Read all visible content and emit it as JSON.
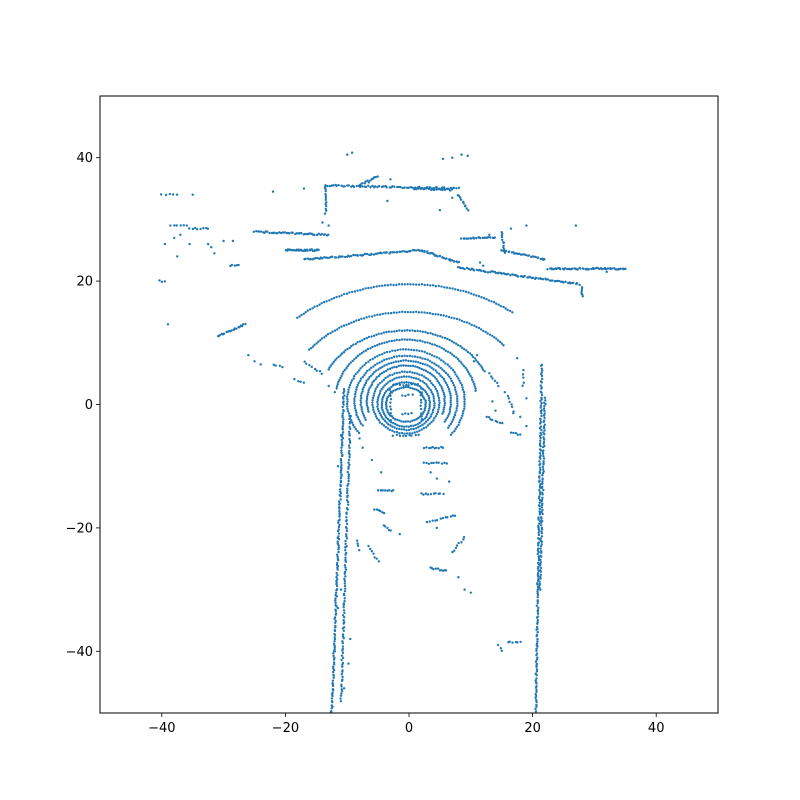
{
  "chart_data": {
    "type": "scatter",
    "title": "",
    "xlabel": "",
    "ylabel": "",
    "xlim": [
      -50,
      50
    ],
    "ylim": [
      -50,
      50
    ],
    "xticks": [
      -40,
      -20,
      0,
      20,
      40
    ],
    "yticks": [
      -40,
      -20,
      0,
      20,
      40
    ],
    "xtick_labels": [
      "−40",
      "−20",
      "0",
      "20",
      "40"
    ],
    "ytick_labels": [
      "−40",
      "−20",
      "0",
      "20",
      "40"
    ],
    "grid": false,
    "legend": "none",
    "marker_color": "#1f77b4",
    "point_groups": {
      "rings": [
        {
          "cx": -0.5,
          "cy": 0.0,
          "rx": 3.2,
          "ry": 2.8,
          "t0": 0,
          "t1": 360
        },
        {
          "cx": -0.5,
          "cy": 0.0,
          "rx": 3.9,
          "ry": 3.6,
          "t0": 0,
          "t1": 360
        },
        {
          "cx": -0.5,
          "cy": 0.2,
          "rx": 4.6,
          "ry": 4.3,
          "t0": 0,
          "t1": 360
        },
        {
          "cx": -0.5,
          "cy": 0.3,
          "rx": 5.4,
          "ry": 5.0,
          "t0": 0,
          "t1": 360
        },
        {
          "cx": -0.5,
          "cy": 0.5,
          "rx": 6.3,
          "ry": 5.8,
          "t0": -20,
          "t1": 200
        },
        {
          "cx": -0.5,
          "cy": 0.5,
          "rx": 7.3,
          "ry": 6.6,
          "t0": -30,
          "t1": 210
        },
        {
          "cx": -0.5,
          "cy": 0.5,
          "rx": 8.3,
          "ry": 7.4,
          "t0": -35,
          "t1": 215
        },
        {
          "cx": -0.5,
          "cy": 0.5,
          "rx": 9.5,
          "ry": 8.4,
          "t0": -40,
          "t1": 220
        },
        {
          "cx": -0.5,
          "cy": 0.5,
          "rx": 11.5,
          "ry": 10.0,
          "t0": 10,
          "t1": 170
        },
        {
          "cx": -0.5,
          "cy": 0.5,
          "rx": 14.0,
          "ry": 11.5,
          "t0": 25,
          "t1": 155
        },
        {
          "cx": 0.0,
          "cy": 0.0,
          "rx": 20.0,
          "ry": 15.0,
          "t0": 40,
          "t1": 145
        },
        {
          "cx": 0.0,
          "cy": 0.0,
          "rx": 26.0,
          "ry": 19.5,
          "t0": 50,
          "t1": 135
        }
      ],
      "segments": [
        {
          "x0": -10.5,
          "y0": 2.5,
          "x1": -12.5,
          "y1": -50.0,
          "n": 160
        },
        {
          "x0": -9.5,
          "y0": -2.0,
          "x1": -11.0,
          "y1": -48.0,
          "n": 120
        },
        {
          "x0": 21.5,
          "y0": 6.5,
          "x1": 20.5,
          "y1": -50.0,
          "n": 170
        },
        {
          "x0": 22.0,
          "y0": 1.0,
          "x1": 21.2,
          "y1": -30.0,
          "n": 90
        },
        {
          "x0": -20.0,
          "y0": 25.0,
          "x1": -14.5,
          "y1": 25.0,
          "n": 35
        },
        {
          "x0": -17.0,
          "y0": 23.5,
          "x1": 2.0,
          "y1": 25.0,
          "n": 70
        },
        {
          "x0": 2.0,
          "y0": 25.0,
          "x1": 8.0,
          "y1": 23.0,
          "n": 30
        },
        {
          "x0": 8.0,
          "y0": 22.2,
          "x1": 27.5,
          "y1": 19.5,
          "n": 75
        },
        {
          "x0": 28.0,
          "y0": 19.0,
          "x1": 28.0,
          "y1": 17.5,
          "n": 6
        },
        {
          "x0": 22.5,
          "y0": 22.0,
          "x1": 35.0,
          "y1": 22.0,
          "n": 55
        },
        {
          "x0": 15.0,
          "y0": 25.0,
          "x1": 22.0,
          "y1": 23.5,
          "n": 28
        },
        {
          "x0": -25.0,
          "y0": 28.0,
          "x1": -13.0,
          "y1": 27.5,
          "n": 45
        },
        {
          "x0": -13.5,
          "y0": 35.5,
          "x1": 8.0,
          "y1": 35.0,
          "n": 70
        },
        {
          "x0": -13.5,
          "y0": 35.5,
          "x1": -13.5,
          "y1": 31.0,
          "n": 14
        },
        {
          "x0": -8.0,
          "y0": 35.5,
          "x1": -5.0,
          "y1": 37.0,
          "n": 12
        },
        {
          "x0": 1.0,
          "y0": 35.0,
          "x1": 7.0,
          "y1": 34.8,
          "n": 24
        },
        {
          "x0": 8.0,
          "y0": 34.0,
          "x1": 9.5,
          "y1": 31.5,
          "n": 10
        },
        {
          "x0": 8.5,
          "y0": 27.0,
          "x1": 14.0,
          "y1": 27.0,
          "n": 22
        },
        {
          "x0": 15.0,
          "y0": 28.0,
          "x1": 15.5,
          "y1": 24.5,
          "n": 12
        },
        {
          "x0": -31.0,
          "y0": 11.0,
          "x1": -26.5,
          "y1": 13.0,
          "n": 20
        },
        {
          "x0": -38.5,
          "y0": 29.0,
          "x1": -36.0,
          "y1": 29.0,
          "n": 6
        },
        {
          "x0": -35.5,
          "y0": 28.5,
          "x1": -32.5,
          "y1": 28.5,
          "n": 8
        },
        {
          "x0": -29.0,
          "y0": 22.5,
          "x1": -27.5,
          "y1": 22.5,
          "n": 5
        },
        {
          "x0": -40.5,
          "y0": 20.0,
          "x1": -39.5,
          "y1": 20.0,
          "n": 3
        },
        {
          "x0": -40.0,
          "y0": 34.0,
          "x1": -37.5,
          "y1": 34.0,
          "n": 5
        },
        {
          "x0": -3.0,
          "y0": 2.5,
          "x1": -3.0,
          "y1": -2.5,
          "n": 10
        },
        {
          "x0": 2.0,
          "y0": 2.5,
          "x1": 2.0,
          "y1": -2.5,
          "n": 10
        },
        {
          "x0": -2.5,
          "y0": 3.2,
          "x1": 1.5,
          "y1": 3.2,
          "n": 9
        },
        {
          "x0": -1.0,
          "y0": 1.5,
          "x1": 0.5,
          "y1": 1.5,
          "n": 4
        },
        {
          "x0": -1.0,
          "y0": -1.5,
          "x1": 0.5,
          "y1": -1.5,
          "n": 4
        },
        {
          "x0": -2.5,
          "y0": -5.0,
          "x1": 1.5,
          "y1": -5.0,
          "n": 9
        },
        {
          "x0": 2.5,
          "y0": -7.0,
          "x1": 5.5,
          "y1": -7.0,
          "n": 10
        },
        {
          "x0": 2.5,
          "y0": -9.5,
          "x1": 6.0,
          "y1": -9.5,
          "n": 10
        },
        {
          "x0": 2.0,
          "y0": -14.5,
          "x1": 5.5,
          "y1": -14.5,
          "n": 10
        },
        {
          "x0": -5.0,
          "y0": -14.0,
          "x1": -2.5,
          "y1": -14.0,
          "n": 8
        },
        {
          "x0": -5.5,
          "y0": -17.0,
          "x1": -4.0,
          "y1": -17.5,
          "n": 6
        },
        {
          "x0": -4.0,
          "y0": -19.5,
          "x1": -3.0,
          "y1": -20.5,
          "n": 5
        },
        {
          "x0": 3.0,
          "y0": -19.0,
          "x1": 7.5,
          "y1": -18.0,
          "n": 12
        },
        {
          "x0": 3.5,
          "y0": -26.5,
          "x1": 6.0,
          "y1": -27.0,
          "n": 10
        },
        {
          "x0": 7.0,
          "y0": -24.0,
          "x1": 9.0,
          "y1": -21.5,
          "n": 8
        },
        {
          "x0": -6.5,
          "y0": -23.0,
          "x1": -5.0,
          "y1": -25.5,
          "n": 7
        },
        {
          "x0": -8.5,
          "y0": -22.0,
          "x1": -8.0,
          "y1": -23.5,
          "n": 4
        },
        {
          "x0": 16.0,
          "y0": -38.5,
          "x1": 18.0,
          "y1": -38.5,
          "n": 6
        },
        {
          "x0": 14.5,
          "y0": -39.0,
          "x1": 15.0,
          "y1": -40.0,
          "n": 3
        },
        {
          "x0": 12.5,
          "y0": -2.0,
          "x1": 15.0,
          "y1": -3.0,
          "n": 8
        },
        {
          "x0": 13.0,
          "y0": 5.0,
          "x1": 14.5,
          "y1": 3.0,
          "n": 6
        },
        {
          "x0": 16.0,
          "y0": 1.5,
          "x1": 17.0,
          "y1": -1.5,
          "n": 7
        },
        {
          "x0": 16.5,
          "y0": -4.5,
          "x1": 18.0,
          "y1": -5.0,
          "n": 5
        },
        {
          "x0": 18.5,
          "y0": 5.5,
          "x1": 18.5,
          "y1": 3.0,
          "n": 5
        },
        {
          "x0": -17.0,
          "y0": 7.0,
          "x1": -14.0,
          "y1": 5.0,
          "n": 8
        },
        {
          "x0": -22.0,
          "y0": 6.5,
          "x1": -20.5,
          "y1": 6.0,
          "n": 4
        },
        {
          "x0": -18.5,
          "y0": 4.0,
          "x1": -17.0,
          "y1": 3.5,
          "n": 4
        }
      ],
      "points": [
        [
          -10.0,
          40.5
        ],
        [
          -9.2,
          40.8
        ],
        [
          7.0,
          40.0
        ],
        [
          8.5,
          40.5
        ],
        [
          9.5,
          40.3
        ],
        [
          5.5,
          39.8
        ],
        [
          -35.0,
          34.0
        ],
        [
          -22.0,
          34.5
        ],
        [
          -17.0,
          35.0
        ],
        [
          -3.0,
          36.5
        ],
        [
          -6.5,
          36.0
        ],
        [
          -39.5,
          26.0
        ],
        [
          -38.0,
          27.0
        ],
        [
          -37.0,
          27.5
        ],
        [
          -35.5,
          26.0
        ],
        [
          -32.5,
          26.0
        ],
        [
          -32.0,
          25.5
        ],
        [
          -30.0,
          26.5
        ],
        [
          -28.5,
          26.5
        ],
        [
          -37.5,
          24.0
        ],
        [
          -31.5,
          24.5
        ],
        [
          -39.0,
          13.0
        ],
        [
          -26.0,
          8.0
        ],
        [
          -25.0,
          7.0
        ],
        [
          -24.0,
          6.5
        ],
        [
          -13.0,
          3.0
        ],
        [
          -12.0,
          2.0
        ],
        [
          -11.0,
          -5.0
        ],
        [
          -11.5,
          -10.0
        ],
        [
          -8.0,
          -5.5
        ],
        [
          -7.5,
          -7.0
        ],
        [
          -6.0,
          -9.0
        ],
        [
          -4.5,
          -11.0
        ],
        [
          3.5,
          -11.0
        ],
        [
          4.5,
          -12.0
        ],
        [
          6.5,
          -12.5
        ],
        [
          4.5,
          -20.0
        ],
        [
          8.0,
          -28.0
        ],
        [
          9.0,
          -30.0
        ],
        [
          10.0,
          -30.5
        ],
        [
          -1.5,
          -21.0
        ],
        [
          -11.0,
          -30.0
        ],
        [
          -11.5,
          -33.0
        ],
        [
          -12.0,
          -40.0
        ],
        [
          -9.5,
          -38.0
        ],
        [
          -9.8,
          -42.0
        ],
        [
          -10.5,
          -46.0
        ],
        [
          13.5,
          0.5
        ],
        [
          14.0,
          -1.0
        ],
        [
          15.5,
          2.0
        ],
        [
          19.0,
          1.0
        ],
        [
          18.0,
          -2.0
        ],
        [
          19.0,
          -3.5
        ],
        [
          17.5,
          7.5
        ],
        [
          11.0,
          8.0
        ],
        [
          10.5,
          7.0
        ],
        [
          12.0,
          22.5
        ],
        [
          11.5,
          23.0
        ],
        [
          13.0,
          27.5
        ],
        [
          16.5,
          28.5
        ],
        [
          19.0,
          29.0
        ],
        [
          27.0,
          29.0
        ],
        [
          32.0,
          21.5
        ],
        [
          20.5,
          20.5
        ],
        [
          5.0,
          31.5
        ],
        [
          7.0,
          33.5
        ],
        [
          -3.5,
          33.0
        ],
        [
          -14.0,
          29.5
        ],
        [
          -13.0,
          29.0
        ]
      ]
    }
  }
}
